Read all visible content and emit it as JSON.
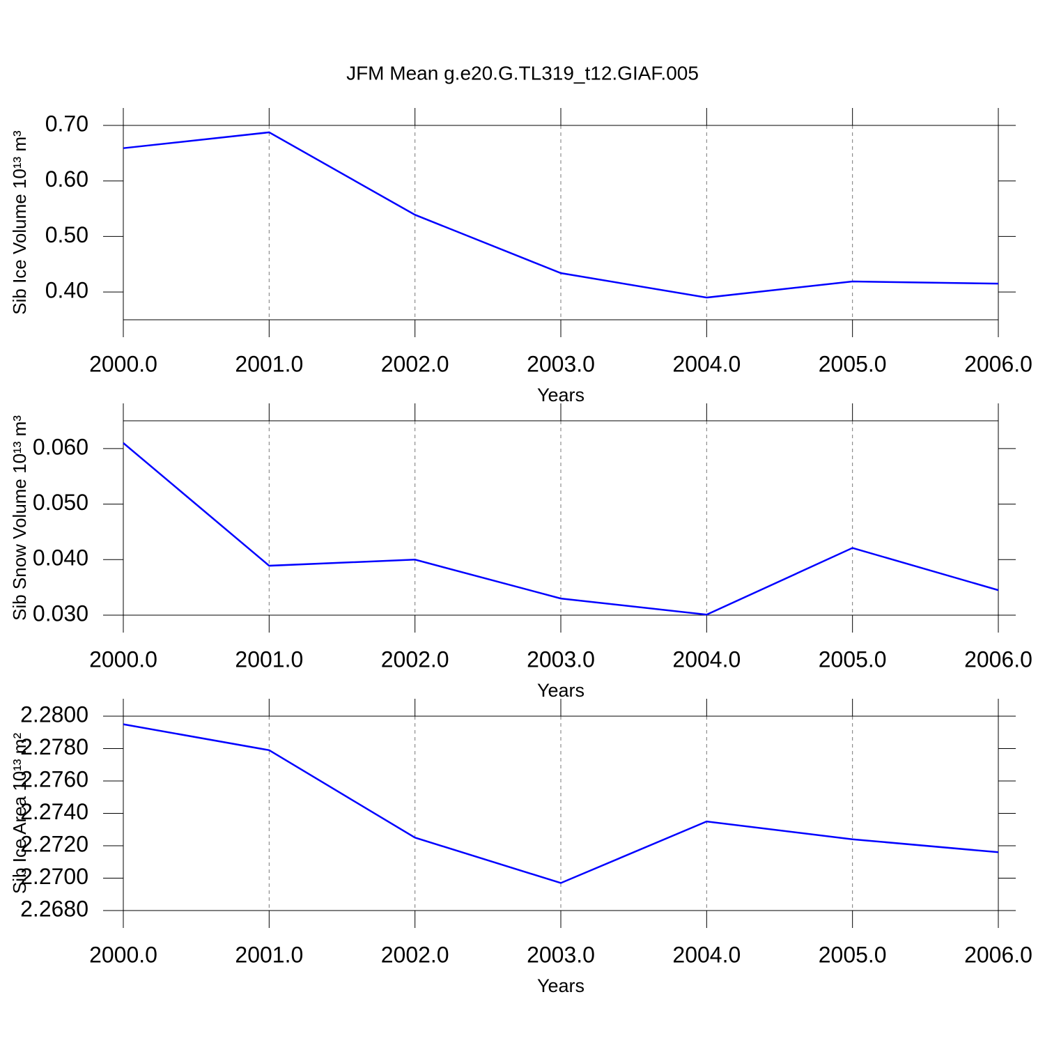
{
  "chart_data": [
    {
      "type": "line",
      "title": "JFM Mean g.e20.G.TL319_t12.GIAF.005",
      "x_label": "Years",
      "y_label": "Sib Ice Volume 10¹³ m³",
      "x": [
        2000,
        2001,
        2002,
        2003,
        2004,
        2005,
        2006
      ],
      "values": [
        0.659,
        0.6875,
        0.539,
        0.434,
        0.39,
        0.419,
        0.415
      ],
      "color": "#0000ff",
      "xlim": [
        2000,
        2006
      ],
      "xticks": [
        {
          "value": 2000,
          "label": "2000.0"
        },
        {
          "value": 2001,
          "label": "2001.0"
        },
        {
          "value": 2002,
          "label": "2002.0"
        },
        {
          "value": 2003,
          "label": "2003.0"
        },
        {
          "value": 2004,
          "label": "2004.0"
        },
        {
          "value": 2005,
          "label": "2005.0"
        },
        {
          "value": 2006,
          "label": "2006.0"
        }
      ],
      "ylim": [
        0.35,
        0.7
      ],
      "yticks": [
        {
          "value": 0.4,
          "label": "0.40"
        },
        {
          "value": 0.5,
          "label": "0.50"
        },
        {
          "value": 0.6,
          "label": "0.60"
        },
        {
          "value": 0.7,
          "label": "0.70"
        }
      ],
      "grid": true
    },
    {
      "type": "line",
      "x_label": "Years",
      "y_label": "Sib Snow Volume 10¹³ m³",
      "x": [
        2000,
        2001,
        2002,
        2003,
        2004,
        2005,
        2006
      ],
      "values": [
        0.061,
        0.0389,
        0.04,
        0.033,
        0.0301,
        0.0421,
        0.0345
      ],
      "color": "#0000ff",
      "xlim": [
        2000,
        2006
      ],
      "xticks": [
        {
          "value": 2000,
          "label": "2000.0"
        },
        {
          "value": 2001,
          "label": "2001.0"
        },
        {
          "value": 2002,
          "label": "2002.0"
        },
        {
          "value": 2003,
          "label": "2003.0"
        },
        {
          "value": 2004,
          "label": "2004.0"
        },
        {
          "value": 2005,
          "label": "2005.0"
        },
        {
          "value": 2006,
          "label": "2006.0"
        }
      ],
      "ylim": [
        0.03,
        0.065
      ],
      "yticks": [
        {
          "value": 0.03,
          "label": "0.030"
        },
        {
          "value": 0.04,
          "label": "0.040"
        },
        {
          "value": 0.05,
          "label": "0.050"
        },
        {
          "value": 0.06,
          "label": "0.060"
        }
      ],
      "grid": true
    },
    {
      "type": "line",
      "x_label": "Years",
      "y_label": "Sib Ice Area 10¹³ m²",
      "x": [
        2000,
        2001,
        2002,
        2003,
        2004,
        2005,
        2006
      ],
      "values": [
        2.2795,
        2.2779,
        2.2725,
        2.2697,
        2.2735,
        2.2724,
        2.2716
      ],
      "color": "#0000ff",
      "xlim": [
        2000,
        2006
      ],
      "xticks": [
        {
          "value": 2000,
          "label": "2000.0"
        },
        {
          "value": 2001,
          "label": "2001.0"
        },
        {
          "value": 2002,
          "label": "2002.0"
        },
        {
          "value": 2003,
          "label": "2003.0"
        },
        {
          "value": 2004,
          "label": "2004.0"
        },
        {
          "value": 2005,
          "label": "2005.0"
        },
        {
          "value": 2006,
          "label": "2006.0"
        }
      ],
      "ylim": [
        2.268,
        2.28
      ],
      "yticks": [
        {
          "value": 2.268,
          "label": "2.2680"
        },
        {
          "value": 2.27,
          "label": "2.2700"
        },
        {
          "value": 2.272,
          "label": "2.2720"
        },
        {
          "value": 2.274,
          "label": "2.2740"
        },
        {
          "value": 2.276,
          "label": "2.2760"
        },
        {
          "value": 2.278,
          "label": "2.2780"
        },
        {
          "value": 2.28,
          "label": "2.2800"
        }
      ],
      "grid": true
    }
  ]
}
